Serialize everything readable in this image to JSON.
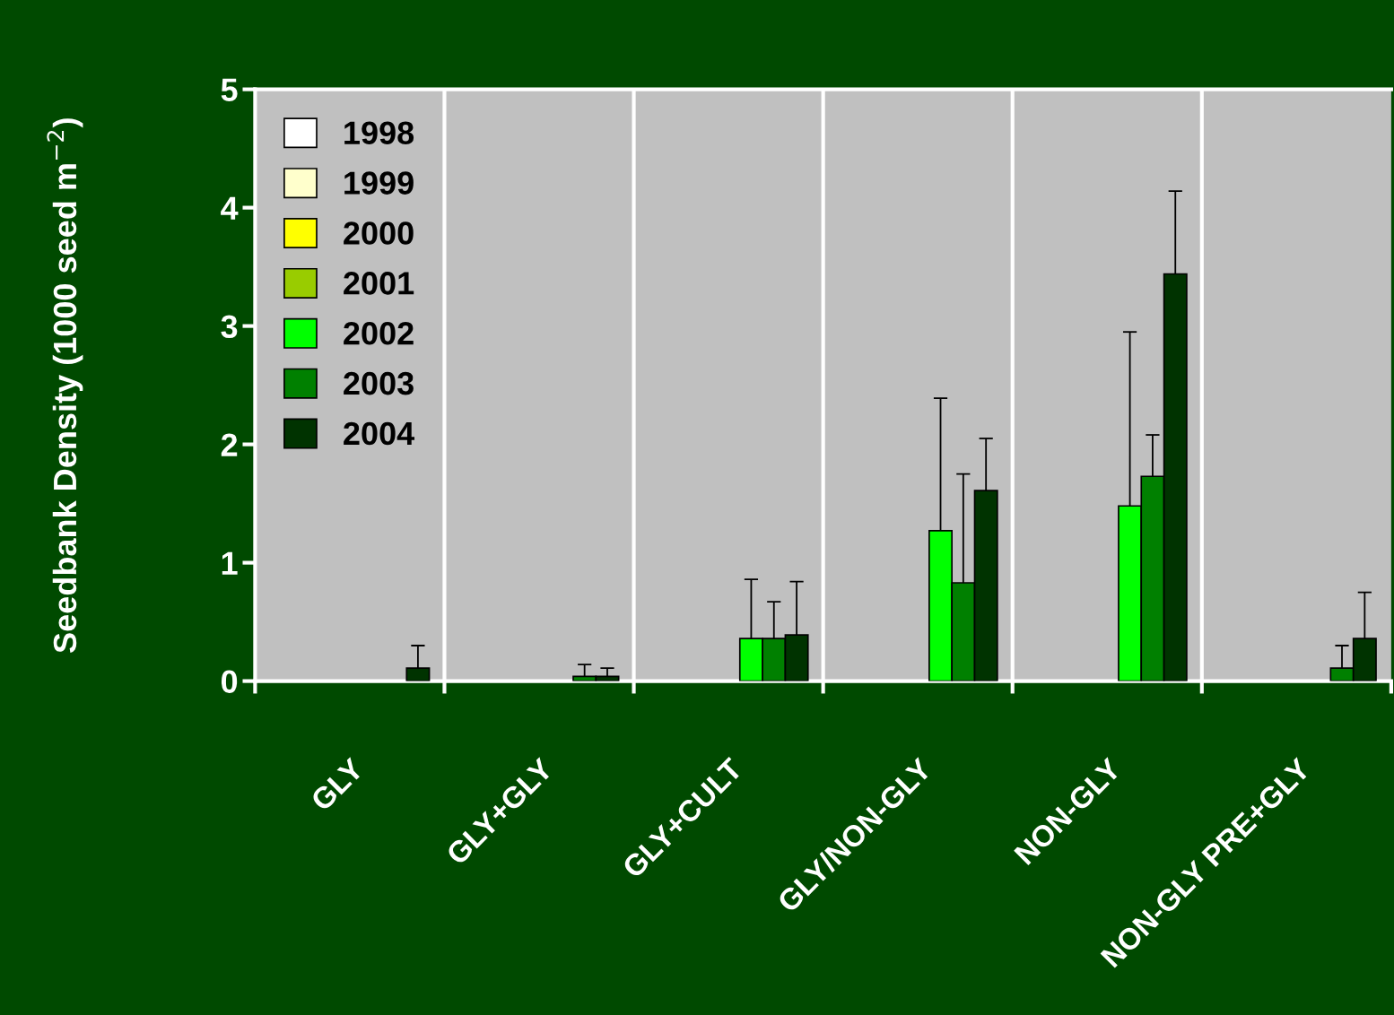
{
  "chart_data": {
    "type": "bar",
    "ylabel": "Seedbank Density (1000 seed m$^{−2}$)",
    "categories": [
      "GLY",
      "GLY+GLY",
      "GLY+CULT",
      "GLY/NON-GLY",
      "NON-GLY",
      "NON-GLY PRE+GLY"
    ],
    "series": [
      {
        "name": "1998",
        "color": "#ffffff",
        "values": [
          null,
          null,
          null,
          null,
          null,
          null
        ]
      },
      {
        "name": "1999",
        "color": "#ffffcc",
        "values": [
          null,
          null,
          null,
          null,
          null,
          null
        ]
      },
      {
        "name": "2000",
        "color": "#ffff00",
        "values": [
          null,
          null,
          null,
          null,
          null,
          null
        ]
      },
      {
        "name": "2001",
        "color": "#99cc00",
        "values": [
          null,
          null,
          null,
          null,
          null,
          null
        ]
      },
      {
        "name": "2002",
        "color": "#00ff00",
        "values": [
          null,
          null,
          0.36,
          1.27,
          1.48,
          null
        ],
        "errors": [
          null,
          null,
          [
            0.36,
            0.86
          ],
          [
            1.27,
            2.39
          ],
          [
            1.48,
            2.95
          ],
          null
        ]
      },
      {
        "name": "2003",
        "color": "#008000",
        "values": [
          null,
          0.04,
          0.36,
          0.83,
          1.73,
          0.11
        ],
        "errors": [
          null,
          [
            0.04,
            0.14
          ],
          [
            0.36,
            0.67
          ],
          [
            0.83,
            1.75
          ],
          [
            1.73,
            2.08
          ],
          [
            0.11,
            0.3
          ]
        ]
      },
      {
        "name": "2004",
        "color": "#003300",
        "values": [
          0.11,
          0.04,
          0.39,
          1.61,
          3.44,
          0.36
        ],
        "errors": [
          [
            0.11,
            0.3
          ],
          [
            0.04,
            0.11
          ],
          [
            0.39,
            0.84
          ],
          [
            1.61,
            2.05
          ],
          [
            3.44,
            4.14
          ],
          [
            0.36,
            0.75
          ]
        ]
      }
    ],
    "ylim": [
      0,
      5
    ],
    "yticks": [
      0,
      1,
      2,
      3,
      4,
      5
    ],
    "grid": "x",
    "legend": "top left"
  }
}
